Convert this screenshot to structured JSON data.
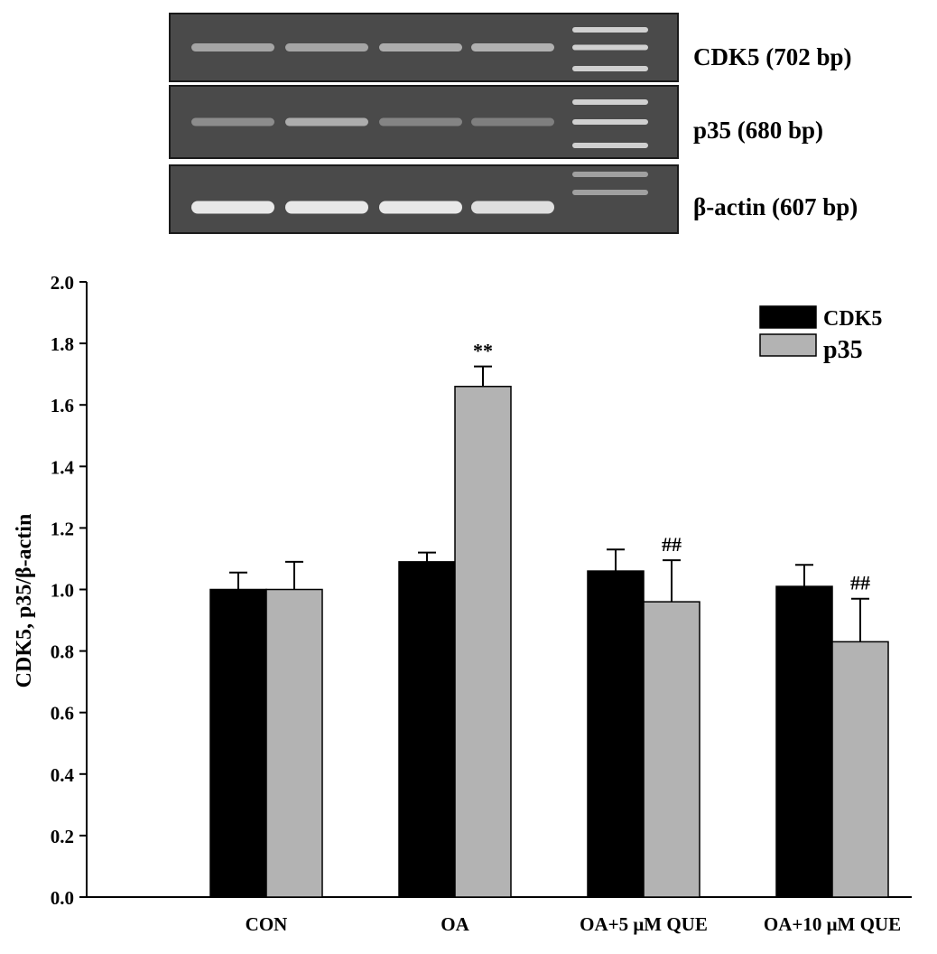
{
  "gel": {
    "bands": [
      {
        "label": "CDK5 (702 bp)",
        "intensities": [
          0.55,
          0.55,
          0.6,
          0.62
        ]
      },
      {
        "label": "p35 (680 bp)",
        "intensities": [
          0.4,
          0.6,
          0.35,
          0.32
        ]
      },
      {
        "label": "β-actin (607 bp)",
        "intensities": [
          0.95,
          0.95,
          0.95,
          0.9
        ]
      }
    ]
  },
  "chart_data": {
    "type": "bar",
    "categories": [
      "CON",
      "OA",
      "OA+5 μM QUE",
      "OA+10 μM QUE"
    ],
    "series": [
      {
        "name": "CDK5",
        "color": "#000000",
        "values": [
          1.0,
          1.09,
          1.06,
          1.01
        ],
        "errors": [
          0.055,
          0.03,
          0.07,
          0.07
        ]
      },
      {
        "name": "p35",
        "color": "#b3b3b3",
        "values": [
          1.0,
          1.66,
          0.96,
          0.83
        ],
        "errors": [
          0.09,
          0.065,
          0.135,
          0.14
        ]
      }
    ],
    "annotations": [
      {
        "category": 1,
        "series": 1,
        "text": "**"
      },
      {
        "category": 2,
        "series": 1,
        "text": "##"
      },
      {
        "category": 3,
        "series": 1,
        "text": "##"
      }
    ],
    "ylabel": "CDK5, p35/β-actin",
    "ylim": [
      0,
      2.0
    ],
    "yticks": [
      "0.0",
      "0.2",
      "0.4",
      "0.6",
      "0.8",
      "1.0",
      "1.2",
      "1.4",
      "1.6",
      "1.8",
      "2.0"
    ],
    "grid": false,
    "legend": {
      "position": "top-right"
    }
  }
}
